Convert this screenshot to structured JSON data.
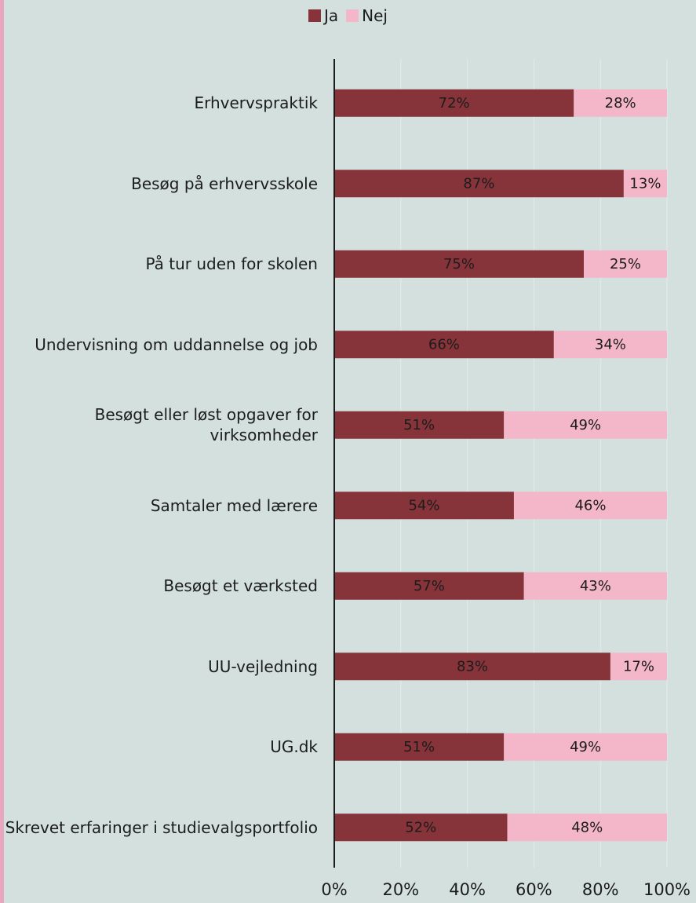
{
  "chart_data": {
    "type": "stacked_bar_horizontal",
    "categories": [
      "Erhvervspraktik",
      "Besøg på erhvervsskole",
      "På tur uden for skolen",
      "Undervisning om uddannelse og job",
      "Besøgt eller løst opgaver for virksomheder",
      "Samtaler med lærere",
      "Besøgt et værksted",
      "UU-vejledning",
      "UG.dk",
      "Skrevet erfaringer i studievalgsportfolio"
    ],
    "series": [
      {
        "name": "Ja",
        "color": "#86333a",
        "values": [
          72,
          87,
          75,
          66,
          51,
          54,
          57,
          83,
          51,
          52
        ],
        "value_labels": [
          "72%",
          "87%",
          "75%",
          "66%",
          "51%",
          "54%",
          "57%",
          "83%",
          "51%",
          "52%"
        ]
      },
      {
        "name": "Nej",
        "color": "#f4b6c9",
        "values": [
          28,
          13,
          25,
          34,
          49,
          46,
          43,
          17,
          49,
          48
        ],
        "value_labels": [
          "28%",
          "13%",
          "25%",
          "34%",
          "49%",
          "46%",
          "43%",
          "17%",
          "49%",
          "48%"
        ]
      }
    ],
    "xlim": [
      0,
      100
    ],
    "xticks": [
      {
        "value": 0,
        "label": "0%"
      },
      {
        "value": 20,
        "label": "20%"
      },
      {
        "value": 40,
        "label": "40%"
      },
      {
        "value": 60,
        "label": "60%"
      },
      {
        "value": 80,
        "label": "80%"
      },
      {
        "value": 100,
        "label": "100%"
      }
    ],
    "grid": true,
    "legend": "top"
  }
}
